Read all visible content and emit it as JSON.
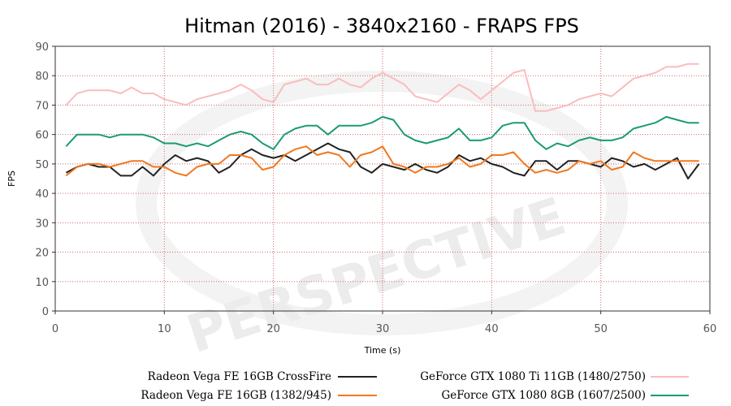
{
  "chart_data": {
    "type": "line",
    "title": "Hitman (2016) - 3840x2160 - FRAPS FPS",
    "xlabel": "Time (s)",
    "ylabel": "FPS",
    "xlim": [
      0,
      60
    ],
    "ylim": [
      0,
      90
    ],
    "xticks": [
      0,
      10,
      20,
      30,
      40,
      50,
      60
    ],
    "yticks": [
      0,
      10,
      20,
      30,
      40,
      50,
      60,
      70,
      80,
      90
    ],
    "grid": true,
    "legend_position": "bottom",
    "x": [
      1,
      2,
      3,
      4,
      5,
      6,
      7,
      8,
      9,
      10,
      11,
      12,
      13,
      14,
      15,
      16,
      17,
      18,
      19,
      20,
      21,
      22,
      23,
      24,
      25,
      26,
      27,
      28,
      29,
      30,
      31,
      32,
      33,
      34,
      35,
      36,
      37,
      38,
      39,
      40,
      41,
      42,
      43,
      44,
      45,
      46,
      47,
      48,
      49,
      50,
      51,
      52,
      53,
      54,
      55,
      56,
      57,
      58,
      59
    ],
    "series": [
      {
        "name": "Radeon Vega FE 16GB CrossFire",
        "color": "#222222",
        "values": [
          47,
          49,
          50,
          49,
          49,
          46,
          46,
          49,
          46,
          50,
          53,
          51,
          52,
          51,
          47,
          49,
          53,
          55,
          53,
          52,
          53,
          51,
          53,
          55,
          57,
          55,
          54,
          49,
          47,
          50,
          49,
          48,
          50,
          48,
          47,
          49,
          53,
          51,
          52,
          50,
          49,
          47,
          46,
          51,
          51,
          48,
          51,
          51,
          50,
          49,
          52,
          51,
          49,
          50,
          48,
          50,
          52,
          45,
          50
        ]
      },
      {
        "name": "Radeon Vega FE 16GB (1382/945)",
        "color": "#f07820",
        "values": [
          46,
          49,
          50,
          50,
          49,
          50,
          51,
          51,
          49,
          49,
          47,
          46,
          49,
          50,
          50,
          53,
          53,
          52,
          48,
          49,
          53,
          55,
          56,
          53,
          54,
          53,
          49,
          53,
          54,
          56,
          50,
          49,
          47,
          49,
          49,
          50,
          52,
          49,
          50,
          53,
          53,
          54,
          50,
          47,
          48,
          47,
          48,
          51,
          50,
          51,
          48,
          49,
          54,
          52,
          51,
          51,
          51,
          51,
          51
        ]
      },
      {
        "name": "GeForce GTX 1080 Ti 11GB (1480/2750)",
        "color": "#fbbcbc",
        "values": [
          70,
          74,
          75,
          75,
          75,
          74,
          76,
          74,
          74,
          72,
          71,
          70,
          72,
          73,
          74,
          75,
          77,
          75,
          72,
          71,
          77,
          78,
          79,
          77,
          77,
          79,
          77,
          76,
          79,
          81,
          79,
          77,
          73,
          72,
          71,
          74,
          77,
          75,
          72,
          75,
          78,
          81,
          82,
          68,
          68,
          69,
          70,
          72,
          73,
          74,
          73,
          76,
          79,
          80,
          81,
          83,
          83,
          84,
          84
        ]
      },
      {
        "name": "GeForce GTX 1080 8GB (1607/2500)",
        "color": "#1a9b73",
        "values": [
          56,
          60,
          60,
          60,
          59,
          60,
          60,
          60,
          59,
          57,
          57,
          56,
          57,
          56,
          58,
          60,
          61,
          60,
          57,
          55,
          60,
          62,
          63,
          63,
          60,
          63,
          63,
          63,
          64,
          66,
          65,
          60,
          58,
          57,
          58,
          59,
          62,
          58,
          58,
          59,
          63,
          64,
          64,
          58,
          55,
          57,
          56,
          58,
          59,
          58,
          58,
          59,
          62,
          63,
          64,
          66,
          65,
          64,
          64
        ]
      }
    ]
  }
}
